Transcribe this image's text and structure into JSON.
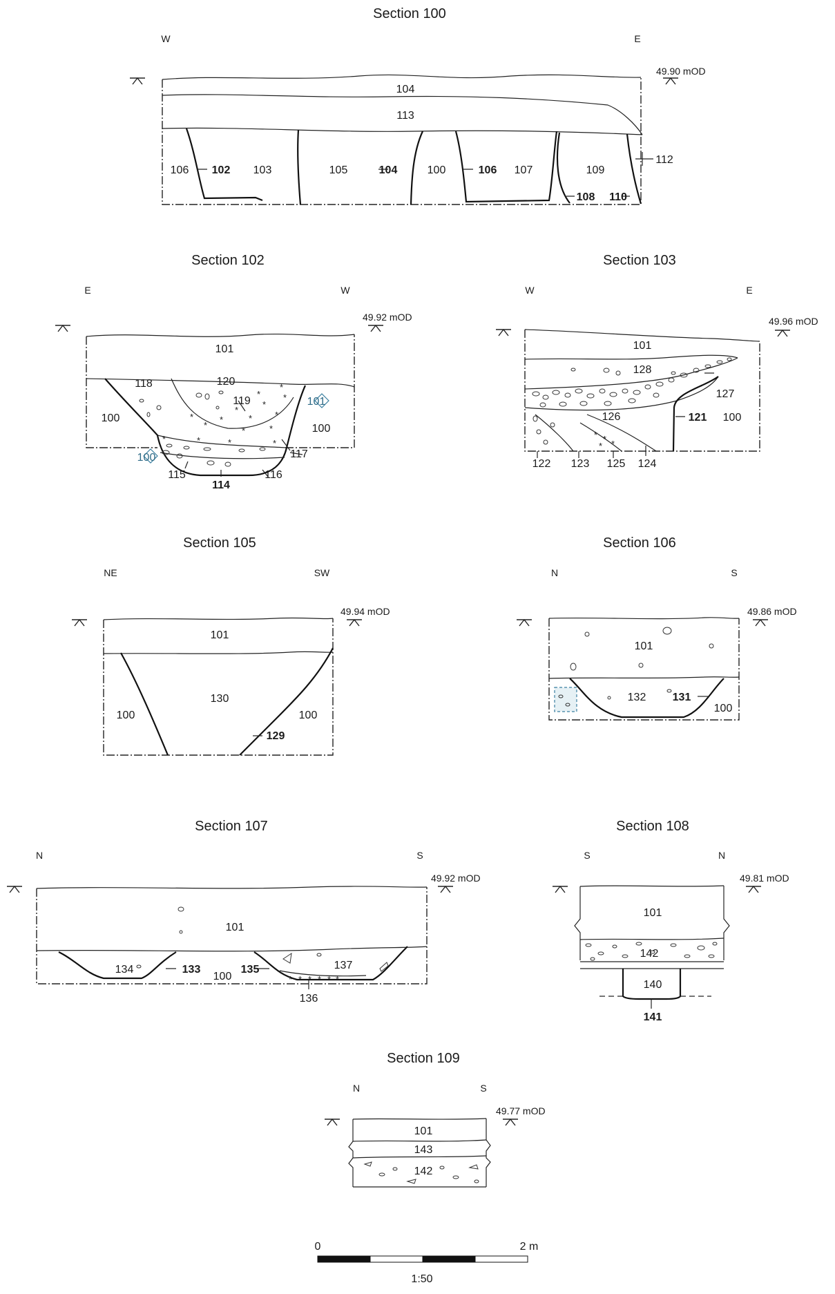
{
  "sections": [
    {
      "id": "s100",
      "title": "Section 100",
      "dir_left": "W",
      "dir_right": "E",
      "level": "49.90 mOD",
      "labels": [
        "104",
        "113",
        "106",
        "102",
        "103",
        "105",
        "104",
        "100",
        "106",
        "107",
        "109",
        "108",
        "110",
        "112"
      ]
    },
    {
      "id": "s102",
      "title": "Section 102",
      "dir_left": "E",
      "dir_right": "W",
      "level": "49.92 mOD",
      "labels": [
        "101",
        "118",
        "120",
        "119",
        "101",
        "100",
        "100",
        "117",
        "100",
        "115",
        "116",
        "114"
      ]
    },
    {
      "id": "s103",
      "title": "Section 103",
      "dir_left": "W",
      "dir_right": "E",
      "level": "49.96 mOD",
      "labels": [
        "101",
        "128",
        "127",
        "126",
        "121",
        "100",
        "122",
        "123",
        "125",
        "124"
      ]
    },
    {
      "id": "s105",
      "title": "Section 105",
      "dir_left": "NE",
      "dir_right": "SW",
      "level": "49.94 mOD",
      "labels": [
        "101",
        "130",
        "100",
        "100",
        "129"
      ]
    },
    {
      "id": "s106",
      "title": "Section 106",
      "dir_left": "N",
      "dir_right": "S",
      "level": "49.86 mOD",
      "labels": [
        "101",
        "132",
        "131",
        "100"
      ]
    },
    {
      "id": "s107",
      "title": "Section 107",
      "dir_left": "N",
      "dir_right": "S",
      "level": "49.92 mOD",
      "labels": [
        "101",
        "134",
        "133",
        "100",
        "135",
        "137",
        "136"
      ]
    },
    {
      "id": "s108",
      "title": "Section 108",
      "dir_left": "S",
      "dir_right": "N",
      "level": "49.81 mOD",
      "labels": [
        "101",
        "142",
        "140",
        "141"
      ]
    },
    {
      "id": "s109",
      "title": "Section 109",
      "dir_left": "N",
      "dir_right": "S",
      "level": "49.77 mOD",
      "labels": [
        "101",
        "143",
        "142"
      ]
    }
  ],
  "scale": {
    "start": "0",
    "end": "2 m",
    "ratio": "1:50"
  }
}
